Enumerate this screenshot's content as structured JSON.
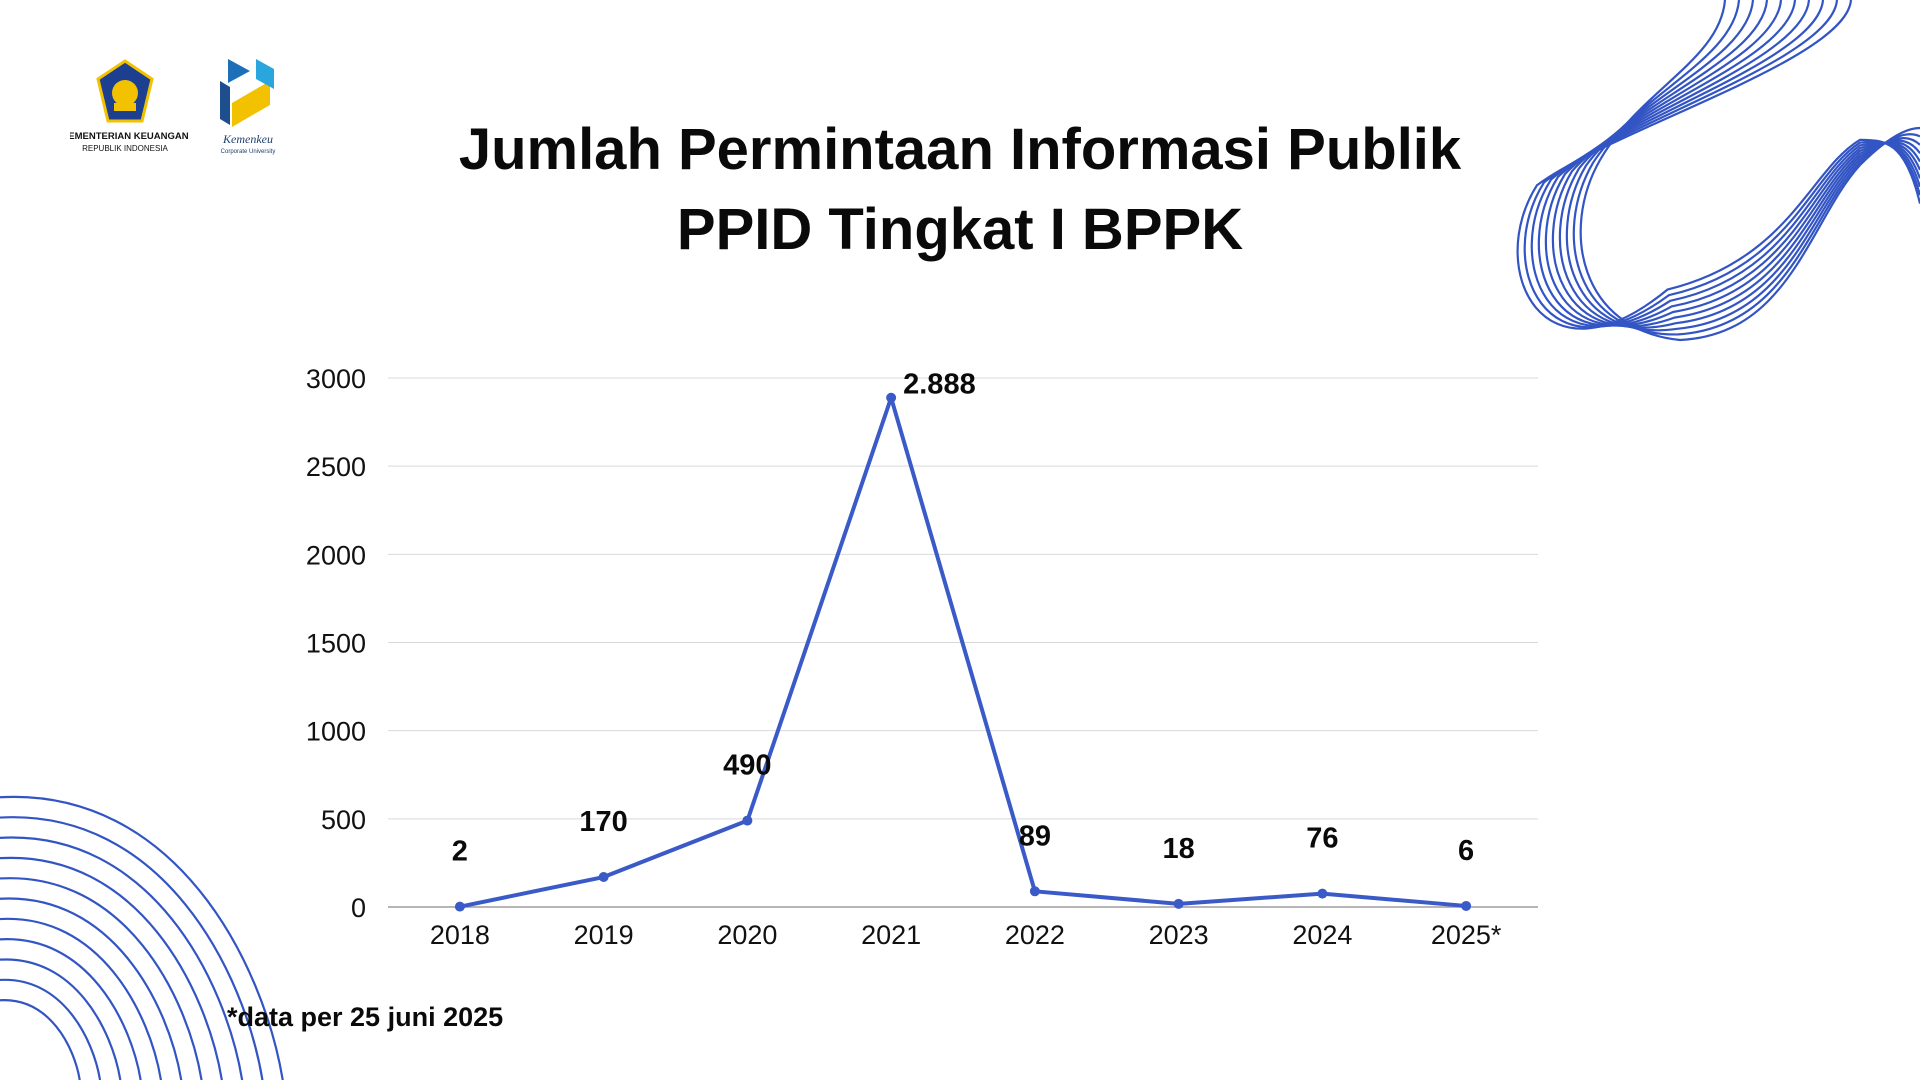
{
  "header": {
    "org_name": "KEMENTERIAN KEUANGAN",
    "org_sub": "REPUBLIK INDONESIA",
    "cu_name": "Kemenkeu",
    "cu_sub": "Corporate University"
  },
  "footnote": "*data per 25 juni 2025",
  "colors": {
    "line": "#3a5bc7",
    "grid": "#d9d9d9",
    "deco": "#3355c4"
  },
  "chart_data": {
    "type": "line",
    "title": [
      "Jumlah Permintaan Informasi Publik",
      "PPID Tingkat I BPPK"
    ],
    "categories": [
      "2018",
      "2019",
      "2020",
      "2021",
      "2022",
      "2023",
      "2024",
      "2025*"
    ],
    "values": [
      2,
      170,
      490,
      2888,
      89,
      18,
      76,
      6
    ],
    "data_labels": [
      "2",
      "170",
      "490",
      "2.888",
      "89",
      "18",
      "76",
      "6"
    ],
    "yticks": [
      "0",
      "500",
      "1000",
      "1500",
      "2000",
      "2500",
      "3000"
    ],
    "ylim": [
      0,
      3000
    ],
    "grid": true,
    "legend": "none"
  }
}
